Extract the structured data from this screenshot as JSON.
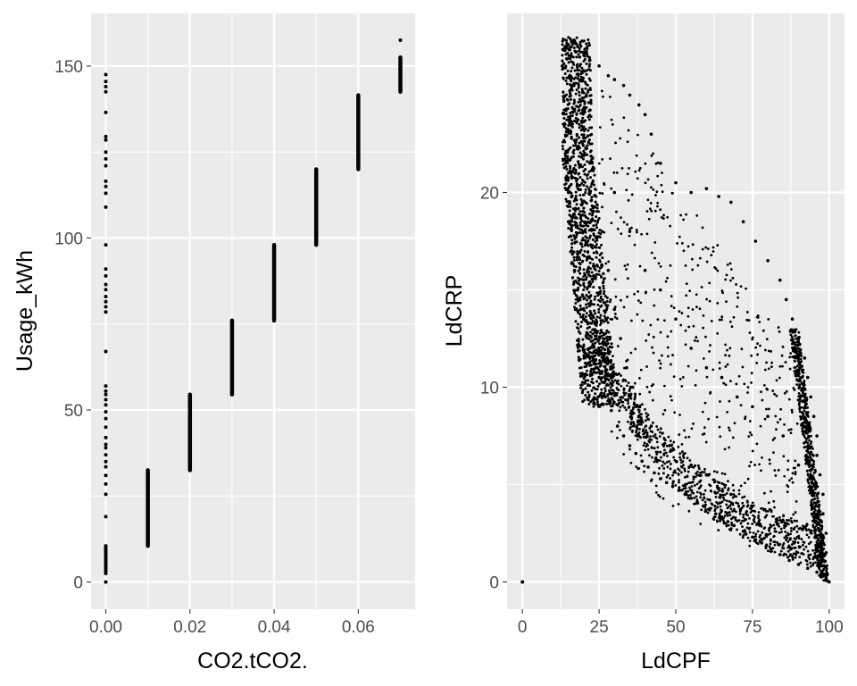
{
  "chart_data": [
    {
      "type": "scatter",
      "xlabel": "CO2.tCO2.",
      "ylabel": "Usage_kWh",
      "xlim": [
        -0.0035,
        0.0735
      ],
      "ylim": [
        -7.9,
        165.3
      ],
      "xticks": [
        0.0,
        0.02,
        0.04,
        0.06
      ],
      "xtick_labels": [
        "0.00",
        "0.02",
        "0.04",
        "0.06"
      ],
      "yticks": [
        0,
        50,
        100,
        150
      ],
      "ytick_labels": [
        "0",
        "50",
        "100",
        "150"
      ],
      "grid": true,
      "points": [
        [
          0.0,
          0.0
        ],
        [
          0.0,
          2.5
        ],
        [
          0.0,
          3.0
        ],
        [
          0.0,
          3.5
        ],
        [
          0.0,
          4.0
        ],
        [
          0.0,
          4.5
        ],
        [
          0.0,
          5.0
        ],
        [
          0.0,
          5.5
        ],
        [
          0.0,
          6.0
        ],
        [
          0.0,
          6.5
        ],
        [
          0.0,
          7.0
        ],
        [
          0.0,
          7.5
        ],
        [
          0.0,
          8.0
        ],
        [
          0.0,
          8.5
        ],
        [
          0.0,
          9.0
        ],
        [
          0.0,
          9.5
        ],
        [
          0.0,
          10.0
        ],
        [
          0.0,
          10.5
        ],
        [
          0.0,
          19.0
        ],
        [
          0.0,
          25.5
        ],
        [
          0.0,
          28.5
        ],
        [
          0.0,
          31.0
        ],
        [
          0.0,
          33.5
        ],
        [
          0.0,
          35.0
        ],
        [
          0.0,
          37.0
        ],
        [
          0.0,
          39.0
        ],
        [
          0.0,
          40.0
        ],
        [
          0.0,
          42.0
        ],
        [
          0.0,
          45.0
        ],
        [
          0.0,
          47.5
        ],
        [
          0.0,
          49.5
        ],
        [
          0.0,
          51.5
        ],
        [
          0.0,
          53.0
        ],
        [
          0.0,
          54.5
        ],
        [
          0.0,
          55.5
        ],
        [
          0.0,
          57.0
        ],
        [
          0.0,
          67.0
        ],
        [
          0.0,
          78.5
        ],
        [
          0.0,
          80.0
        ],
        [
          0.0,
          81.5
        ],
        [
          0.0,
          83.0
        ],
        [
          0.0,
          85.0
        ],
        [
          0.0,
          86.5
        ],
        [
          0.0,
          89.0
        ],
        [
          0.0,
          91.0
        ],
        [
          0.0,
          98.0
        ],
        [
          0.0,
          109.0
        ],
        [
          0.0,
          113.0
        ],
        [
          0.0,
          115.0
        ],
        [
          0.0,
          116.5
        ],
        [
          0.0,
          121.0
        ],
        [
          0.0,
          123.0
        ],
        [
          0.0,
          125.0
        ],
        [
          0.0,
          128.5
        ],
        [
          0.0,
          129.5
        ],
        [
          0.0,
          136.5
        ],
        [
          0.0,
          142.5
        ],
        [
          0.0,
          144.0
        ],
        [
          0.0,
          145.5
        ],
        [
          0.0,
          147.5
        ]
      ],
      "segments": [
        {
          "x": 0.01,
          "y": [
            10.5,
            32.5
          ]
        },
        {
          "x": 0.02,
          "y": [
            32.5,
            54.5
          ]
        },
        {
          "x": 0.03,
          "y": [
            54.5,
            76.0
          ]
        },
        {
          "x": 0.04,
          "y": [
            76.0,
            98.0
          ]
        },
        {
          "x": 0.05,
          "y": [
            98.0,
            120.0
          ]
        },
        {
          "x": 0.06,
          "y": [
            120.0,
            141.5
          ]
        },
        {
          "x": 0.07,
          "y": [
            142.5,
            152.5
          ]
        }
      ],
      "extra_points": [
        [
          0.07,
          157.5
        ]
      ]
    },
    {
      "type": "scatter",
      "xlabel": "LdCPF",
      "ylabel": "LdCRP",
      "xlim": [
        -5.0,
        105.0
      ],
      "ylim": [
        -1.4,
        29.2
      ],
      "xticks": [
        0,
        25,
        50,
        75,
        100
      ],
      "xtick_labels": [
        "0",
        "25",
        "50",
        "75",
        "100"
      ],
      "yticks": [
        0,
        10,
        20
      ],
      "ytick_labels": [
        "0",
        "10",
        "20"
      ],
      "grid": true,
      "outlier": [
        0,
        0
      ],
      "band_points": [
        [
          13,
          26.5
        ],
        [
          14,
          27.5
        ],
        [
          15,
          27.6
        ],
        [
          16,
          27.8
        ],
        [
          17,
          27.8
        ],
        [
          18,
          27.5
        ],
        [
          20,
          27.2
        ],
        [
          22,
          26.8
        ],
        [
          25,
          26.5
        ],
        [
          28,
          26.0
        ],
        [
          30,
          25.8
        ],
        [
          33,
          25.5
        ],
        [
          35,
          25.0
        ],
        [
          38,
          24.5
        ],
        [
          14,
          22.0
        ],
        [
          15,
          20.0
        ],
        [
          15,
          18.5
        ],
        [
          16,
          17.0
        ],
        [
          17,
          16.0
        ],
        [
          18,
          15.0
        ],
        [
          19,
          14.0
        ],
        [
          20,
          13.5
        ],
        [
          21,
          12.8
        ],
        [
          22,
          12.0
        ],
        [
          23,
          11.5
        ],
        [
          24,
          11.0
        ],
        [
          25,
          10.5
        ],
        [
          27,
          9.5
        ],
        [
          29,
          8.8
        ],
        [
          31,
          8.0
        ],
        [
          33,
          7.5
        ],
        [
          35,
          7.0
        ],
        [
          37,
          6.6
        ],
        [
          39,
          6.2
        ],
        [
          41,
          5.9
        ],
        [
          43,
          5.6
        ],
        [
          45,
          5.3
        ],
        [
          47,
          5.1
        ],
        [
          49,
          4.9
        ],
        [
          51,
          4.7
        ],
        [
          53,
          4.5
        ],
        [
          55,
          4.3
        ],
        [
          57,
          4.1
        ],
        [
          59,
          3.9
        ],
        [
          61,
          3.7
        ],
        [
          63,
          3.5
        ],
        [
          65,
          3.3
        ],
        [
          67,
          3.1
        ],
        [
          69,
          2.9
        ],
        [
          72,
          2.6
        ],
        [
          75,
          2.3
        ],
        [
          78,
          2.0
        ],
        [
          81,
          1.7
        ],
        [
          84,
          1.4
        ],
        [
          87,
          1.1
        ],
        [
          90,
          0.9
        ],
        [
          93,
          0.7
        ],
        [
          96,
          0.5
        ],
        [
          98,
          0.3
        ],
        [
          99,
          0.2
        ],
        [
          100,
          0.0
        ],
        [
          99,
          0.8
        ],
        [
          99,
          1.5
        ],
        [
          99,
          2.5
        ],
        [
          98,
          3.5
        ],
        [
          98,
          4.5
        ],
        [
          97,
          5.5
        ],
        [
          96,
          6.5
        ],
        [
          96,
          7.5
        ],
        [
          95,
          8.5
        ],
        [
          94,
          9.5
        ],
        [
          93,
          10.5
        ],
        [
          92,
          11.5
        ],
        [
          90,
          12.5
        ],
        [
          88,
          13.5
        ],
        [
          86,
          14.5
        ],
        [
          84,
          15.5
        ],
        [
          80,
          16.5
        ],
        [
          76,
          17.5
        ],
        [
          72,
          18.5
        ],
        [
          68,
          19.5
        ],
        [
          64,
          19.8
        ],
        [
          60,
          20.2
        ],
        [
          55,
          20.0
        ],
        [
          50,
          20.5
        ],
        [
          45,
          21.5
        ],
        [
          42,
          23.0
        ],
        [
          40,
          24.0
        ],
        [
          30,
          20.0
        ],
        [
          35,
          18.0
        ],
        [
          40,
          16.0
        ],
        [
          45,
          15.0
        ],
        [
          50,
          13.5
        ],
        [
          55,
          12.0
        ],
        [
          60,
          11.0
        ],
        [
          65,
          10.5
        ],
        [
          70,
          9.5
        ],
        [
          75,
          9.0
        ],
        [
          80,
          8.5
        ],
        [
          85,
          7.5
        ],
        [
          90,
          6.0
        ],
        [
          26,
          18.0
        ],
        [
          28,
          16.0
        ],
        [
          30,
          14.0
        ],
        [
          32,
          12.5
        ],
        [
          34,
          11.0
        ],
        [
          36,
          10.0
        ],
        [
          38,
          9.0
        ],
        [
          42,
          8.0
        ],
        [
          48,
          7.0
        ],
        [
          55,
          6.0
        ],
        [
          60,
          5.5
        ],
        [
          68,
          4.5
        ]
      ]
    }
  ]
}
